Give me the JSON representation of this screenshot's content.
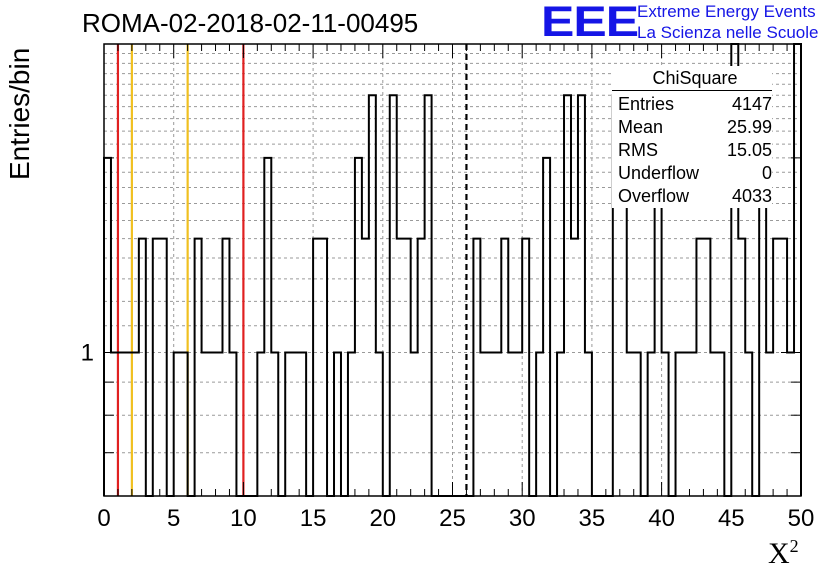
{
  "title": "ROMA-02-2018-02-11-00495",
  "logo": {
    "mark": "EEE",
    "line1": "Extreme Energy Events",
    "line2": "La Scienza nelle Scuole",
    "color": "#1515e6"
  },
  "stats_box": {
    "title": "ChiSquare",
    "rows": [
      {
        "label": "Entries",
        "value": "4147"
      },
      {
        "label": "Mean",
        "value": "25.99"
      },
      {
        "label": "RMS",
        "value": "15.05"
      },
      {
        "label": "Underflow",
        "value": "0"
      },
      {
        "label": "Overflow",
        "value": "4033"
      }
    ]
  },
  "chart_data": {
    "type": "histogram",
    "title": "ROMA-02-2018-02-11-00495",
    "xlabel": "X",
    "xlabel_superscript": "2",
    "ylabel": "Entries/bin",
    "xlim": [
      0,
      50
    ],
    "ylim": [
      0.6,
      3.0
    ],
    "log_y": true,
    "grid": true,
    "bin_width": 0.5,
    "x_ticks": [
      0,
      5,
      10,
      15,
      20,
      25,
      30,
      35,
      40,
      45,
      50
    ],
    "y_tick_labels": [
      {
        "value": 1,
        "label": "1"
      }
    ],
    "bins": [
      [
        0,
        2
      ],
      [
        0.5,
        1
      ],
      [
        1,
        1
      ],
      [
        1.5,
        1
      ],
      [
        2,
        1
      ],
      [
        2.5,
        1.5
      ],
      [
        3,
        0
      ],
      [
        3.5,
        1.5
      ],
      [
        4,
        1.5
      ],
      [
        4.5,
        0
      ],
      [
        5,
        1
      ],
      [
        5.5,
        1
      ],
      [
        6,
        0
      ],
      [
        6.5,
        1.5
      ],
      [
        7,
        1
      ],
      [
        7.5,
        1
      ],
      [
        8,
        1
      ],
      [
        8.5,
        1.5
      ],
      [
        9,
        1
      ],
      [
        9.5,
        0
      ],
      [
        10,
        0
      ],
      [
        10.5,
        0
      ],
      [
        11,
        1
      ],
      [
        11.5,
        2
      ],
      [
        12,
        1
      ],
      [
        12.5,
        0
      ],
      [
        13,
        1
      ],
      [
        13.5,
        1
      ],
      [
        14,
        1
      ],
      [
        14.5,
        0
      ],
      [
        15,
        1.5
      ],
      [
        15.5,
        1.5
      ],
      [
        16,
        0
      ],
      [
        16.5,
        1
      ],
      [
        17,
        0
      ],
      [
        17.5,
        1
      ],
      [
        18,
        2
      ],
      [
        18.5,
        1.5
      ],
      [
        19,
        2.5
      ],
      [
        19.5,
        1
      ],
      [
        20,
        0
      ],
      [
        20.5,
        2.5
      ],
      [
        21,
        1.5
      ],
      [
        21.5,
        1.5
      ],
      [
        22,
        1
      ],
      [
        22.5,
        1.5
      ],
      [
        23,
        2.5
      ],
      [
        23.5,
        0
      ],
      [
        24,
        0
      ],
      [
        24.5,
        0
      ],
      [
        25,
        0
      ],
      [
        25.5,
        0
      ],
      [
        26,
        0
      ],
      [
        26.5,
        1.5
      ],
      [
        27,
        1
      ],
      [
        27.5,
        1
      ],
      [
        28,
        1
      ],
      [
        28.5,
        1.5
      ],
      [
        29,
        1
      ],
      [
        29.5,
        1
      ],
      [
        30,
        1.5
      ],
      [
        30.5,
        0
      ],
      [
        31,
        1
      ],
      [
        31.5,
        2
      ],
      [
        32,
        0
      ],
      [
        32.5,
        1
      ],
      [
        33,
        2.5
      ],
      [
        33.5,
        1.5
      ],
      [
        34,
        2.5
      ],
      [
        34.5,
        1
      ],
      [
        35,
        0
      ],
      [
        35.5,
        0
      ],
      [
        36,
        0
      ],
      [
        36.5,
        2.5
      ],
      [
        37,
        2.5
      ],
      [
        37.5,
        1
      ],
      [
        38,
        1
      ],
      [
        38.5,
        0
      ],
      [
        39,
        1
      ],
      [
        39.5,
        2
      ],
      [
        40,
        1
      ],
      [
        40.5,
        0
      ],
      [
        41,
        1
      ],
      [
        41.5,
        1
      ],
      [
        42,
        1
      ],
      [
        42.5,
        1.5
      ],
      [
        43,
        1.5
      ],
      [
        43.5,
        1
      ],
      [
        44,
        1
      ],
      [
        44.5,
        0
      ],
      [
        45,
        3
      ],
      [
        45.5,
        1.5
      ],
      [
        46,
        1
      ],
      [
        46.5,
        0
      ],
      [
        47,
        2
      ],
      [
        47.5,
        1
      ],
      [
        48,
        1.5
      ],
      [
        48.5,
        1.5
      ],
      [
        49,
        1
      ],
      [
        49.5,
        3
      ]
    ],
    "vertical_lines": [
      {
        "x": 1,
        "color": "#e02020",
        "style": "solid"
      },
      {
        "x": 2,
        "color": "#f0c020",
        "style": "solid"
      },
      {
        "x": 6,
        "color": "#f0c020",
        "style": "solid"
      },
      {
        "x": 10,
        "color": "#e02020",
        "style": "solid"
      },
      {
        "x": 26,
        "color": "#000000",
        "style": "dashed"
      }
    ]
  }
}
